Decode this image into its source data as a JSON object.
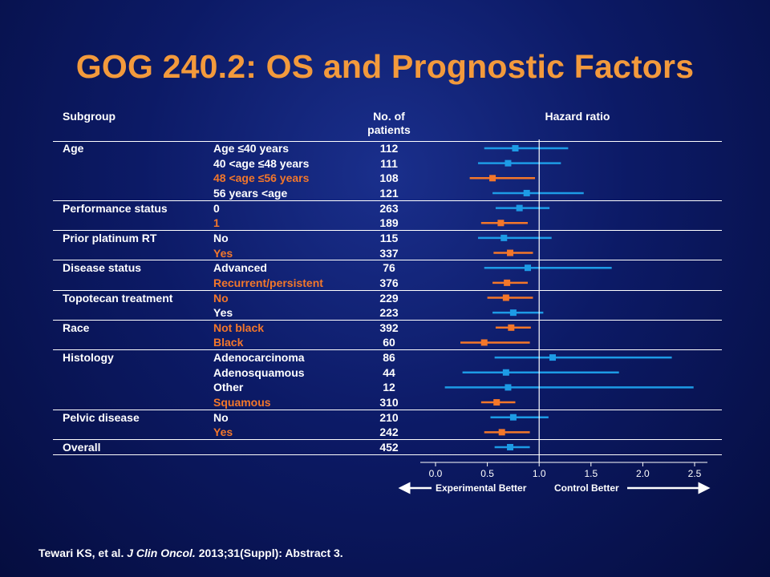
{
  "title": "GOG 240.2: OS and Prognostic Factors",
  "headers": {
    "subgroup": "Subgroup",
    "n_line1": "No. of",
    "n_line2": "patients",
    "hazard": "Hazard ratio"
  },
  "chart_data": {
    "type": "forest",
    "xlabel": "Hazard ratio",
    "xlim": [
      0.0,
      2.5
    ],
    "x_ticks": [
      "0.0",
      "0.5",
      "1.0",
      "1.5",
      "2.0",
      "2.5"
    ],
    "reference_line": 1.0,
    "arrow_left": "Experimental Better",
    "arrow_right": "Control Better",
    "groups": [
      {
        "name": "Age",
        "rows": [
          {
            "label": "Age ≤40 years",
            "n": "112",
            "hr": 0.77,
            "lo": 0.47,
            "hi": 1.28,
            "color": "#1d9be6"
          },
          {
            "label": "40 <age ≤48 years",
            "n": "111",
            "hr": 0.7,
            "lo": 0.41,
            "hi": 1.21,
            "color": "#1d9be6"
          },
          {
            "label": "48 <age ≤56 years",
            "n": "108",
            "hr": 0.55,
            "lo": 0.33,
            "hi": 0.96,
            "color": "#f3772a"
          },
          {
            "label": "56 years <age",
            "n": "121",
            "hr": 0.88,
            "lo": 0.55,
            "hi": 1.43,
            "color": "#1d9be6"
          }
        ]
      },
      {
        "name": "Performance status",
        "rows": [
          {
            "label": "0",
            "n": "263",
            "hr": 0.81,
            "lo": 0.58,
            "hi": 1.1,
            "color": "#1d9be6"
          },
          {
            "label": "1",
            "n": "189",
            "hr": 0.63,
            "lo": 0.44,
            "hi": 0.89,
            "color": "#f3772a"
          }
        ]
      },
      {
        "name": "Prior platinum RT",
        "rows": [
          {
            "label": "No",
            "n": "115",
            "hr": 0.66,
            "lo": 0.41,
            "hi": 1.12,
            "color": "#1d9be6"
          },
          {
            "label": "Yes",
            "n": "337",
            "hr": 0.72,
            "lo": 0.56,
            "hi": 0.94,
            "color": "#f3772a"
          }
        ]
      },
      {
        "name": "Disease status",
        "rows": [
          {
            "label": "Advanced",
            "n": "76",
            "hr": 0.89,
            "lo": 0.47,
            "hi": 1.7,
            "color": "#1d9be6"
          },
          {
            "label": "Recurrent/persistent",
            "n": "376",
            "hr": 0.69,
            "lo": 0.55,
            "hi": 0.89,
            "color": "#f3772a"
          }
        ]
      },
      {
        "name": "Topotecan treatment",
        "rows": [
          {
            "label": "No",
            "n": "229",
            "hr": 0.68,
            "lo": 0.5,
            "hi": 0.94,
            "color": "#f3772a"
          },
          {
            "label": "Yes",
            "n": "223",
            "hr": 0.75,
            "lo": 0.55,
            "hi": 1.04,
            "color": "#1d9be6"
          }
        ]
      },
      {
        "name": "Race",
        "rows": [
          {
            "label": "Not black",
            "n": "392",
            "hr": 0.73,
            "lo": 0.58,
            "hi": 0.92,
            "color": "#f3772a"
          },
          {
            "label": "Black",
            "n": "60",
            "hr": 0.47,
            "lo": 0.24,
            "hi": 0.91,
            "color": "#f3772a"
          }
        ]
      },
      {
        "name": "Histology",
        "rows": [
          {
            "label": "Adenocarcinoma",
            "n": "86",
            "hr": 1.13,
            "lo": 0.57,
            "hi": 2.28,
            "color": "#1d9be6"
          },
          {
            "label": "Adenosquamous",
            "n": "44",
            "hr": 0.68,
            "lo": 0.26,
            "hi": 1.77,
            "color": "#1d9be6"
          },
          {
            "label": "Other",
            "n": "12",
            "hr": 0.7,
            "lo": 0.09,
            "hi": 2.49,
            "color": "#1d9be6"
          },
          {
            "label": "Squamous",
            "n": "310",
            "hr": 0.59,
            "lo": 0.44,
            "hi": 0.77,
            "color": "#f3772a"
          }
        ]
      },
      {
        "name": "Pelvic disease",
        "rows": [
          {
            "label": "No",
            "n": "210",
            "hr": 0.75,
            "lo": 0.53,
            "hi": 1.09,
            "color": "#1d9be6"
          },
          {
            "label": "Yes",
            "n": "242",
            "hr": 0.64,
            "lo": 0.47,
            "hi": 0.91,
            "color": "#f3772a"
          }
        ]
      },
      {
        "name": "Overall",
        "rows": [
          {
            "label": "",
            "n": "452",
            "hr": 0.72,
            "lo": 0.57,
            "hi": 0.91,
            "color": "#1d9be6"
          }
        ]
      }
    ]
  },
  "citation": {
    "authors": "Tewari KS, et al.",
    "journal": "J Clin Oncol.",
    "details": "2013;31(Suppl): Abstract 3."
  }
}
